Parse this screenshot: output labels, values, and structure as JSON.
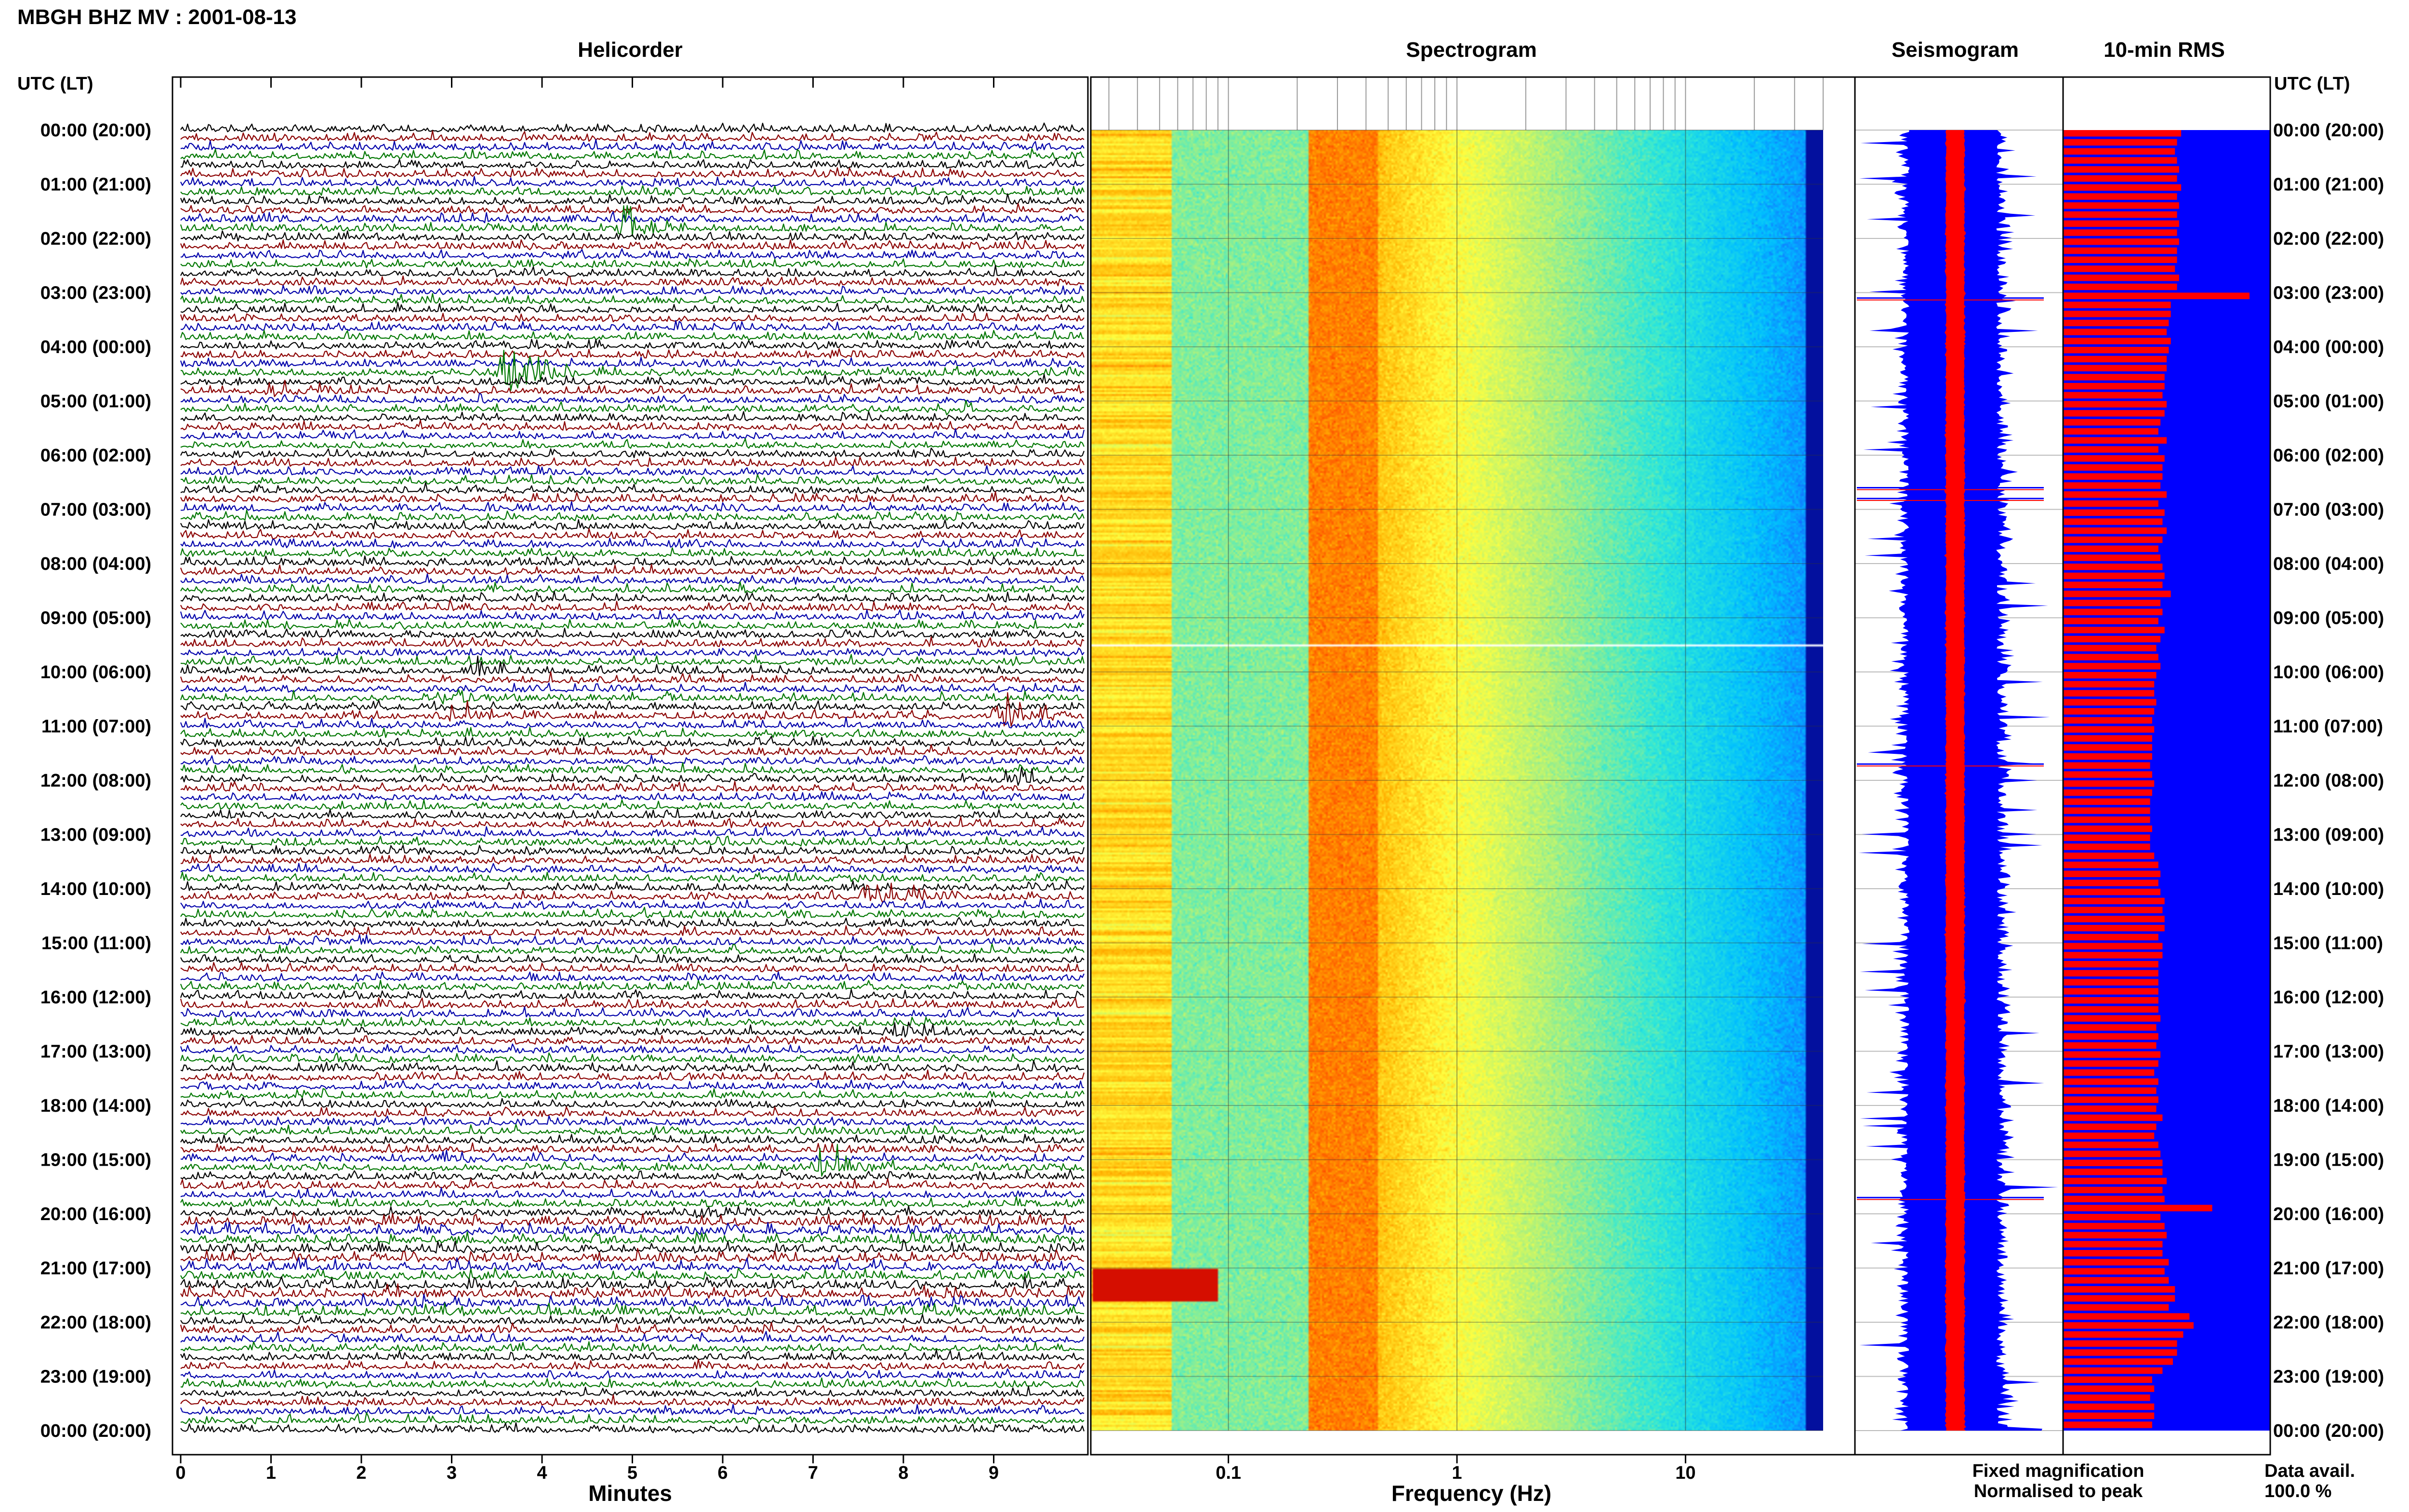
{
  "page": {
    "title": "MBGH BHZ MV : 2001-08-13",
    "axis_label_left": "UTC (LT)",
    "axis_label_right": "UTC (LT)"
  },
  "legend": {
    "fixed": "Fixed magnification",
    "normalised": "Normalised to peak",
    "fixed_color": "#0000ff",
    "normalised_color": "#ff0000",
    "availability_label": "Data avail.",
    "availability_value": "100.0 %"
  },
  "colors": {
    "trace_cycle": [
      "#000000",
      "#8b0000",
      "#0000aa",
      "#007700"
    ],
    "fixed": "#0000ff",
    "normalised": "#ff0000"
  },
  "time_labels": [
    "00:00 (20:00)",
    "01:00 (21:00)",
    "02:00 (22:00)",
    "03:00 (23:00)",
    "04:00 (00:00)",
    "05:00 (01:00)",
    "06:00 (02:00)",
    "07:00 (03:00)",
    "08:00 (04:00)",
    "09:00 (05:00)",
    "10:00 (06:00)",
    "11:00 (07:00)",
    "12:00 (08:00)",
    "13:00 (09:00)",
    "14:00 (10:00)",
    "15:00 (11:00)",
    "16:00 (12:00)",
    "17:00 (13:00)",
    "18:00 (14:00)",
    "19:00 (15:00)",
    "20:00 (16:00)",
    "21:00 (17:00)",
    "22:00 (18:00)",
    "23:00 (19:00)",
    "00:00 (20:00)"
  ],
  "chart_data": [
    {
      "type": "helicorder",
      "title": "Helicorder",
      "xlabel": "Minutes",
      "xlim": [
        0,
        10
      ],
      "xticks": [
        "0",
        "1",
        "2",
        "3",
        "4",
        "5",
        "6",
        "7",
        "8",
        "9"
      ],
      "rows_per_hour": 6,
      "hours": 24,
      "events": [
        {
          "row": 11,
          "minute": 4.9,
          "amp": 2.6,
          "color": "#0000aa"
        },
        {
          "row": 27,
          "minute": 3.6,
          "amp": 5.5,
          "color": "#007700"
        },
        {
          "row": 29,
          "minute": 1.0,
          "amp": 1.5,
          "color": "#000000"
        },
        {
          "row": 31,
          "minute": 8.5,
          "amp": 1.2,
          "color": "#000000"
        },
        {
          "row": 60,
          "minute": 3.3,
          "amp": 1.2,
          "color": "#000000"
        },
        {
          "row": 63,
          "minute": 2.8,
          "amp": 1.5,
          "color": "#007700"
        },
        {
          "row": 65,
          "minute": 9.1,
          "amp": 3.0,
          "color": "#8b0000"
        },
        {
          "row": 65,
          "minute": 3.0,
          "amp": 1.4,
          "color": "#007700"
        },
        {
          "row": 72,
          "minute": 9.2,
          "amp": 1.3,
          "color": "#8b0000"
        },
        {
          "row": 85,
          "minute": 7.8,
          "amp": 1.6,
          "color": "#000000"
        },
        {
          "row": 85,
          "minute": 7.6,
          "amp": 1.2,
          "color": "#007700"
        },
        {
          "row": 100,
          "minute": 7.9,
          "amp": 1.5,
          "color": "#000000"
        },
        {
          "row": 115,
          "minute": 7.1,
          "amp": 2.3,
          "color": "#8b0000"
        },
        {
          "row": 114,
          "minute": 2.9,
          "amp": 1.2,
          "color": "#8b0000"
        },
        {
          "row": 120,
          "minute": 5.7,
          "amp": 1.5,
          "color": "#8b0000"
        }
      ]
    },
    {
      "type": "heatmap",
      "title": "Spectrogram",
      "xlabel": "Frequency (Hz)",
      "x_scale": "log",
      "xlim": [
        0.025,
        40
      ],
      "xticks": [
        "0.1",
        "1",
        "10"
      ],
      "peak_band_hz": [
        0.22,
        0.45
      ],
      "gap_hour": 9.5,
      "colormap": [
        "#00008b",
        "#1565ff",
        "#00bfff",
        "#2fe8d8",
        "#a8f080",
        "#ffff40",
        "#ffb000",
        "#ff3a00",
        "#c80000"
      ]
    },
    {
      "type": "line",
      "title": "Seismogram",
      "series": [
        {
          "name": "Fixed magnification",
          "color": "#0000ff"
        },
        {
          "name": "Normalised to peak",
          "color": "#ff0000"
        }
      ],
      "spike_hours": [
        3.1,
        6.6,
        6.8,
        11.7,
        19.7
      ]
    },
    {
      "type": "bar",
      "title": "10-min RMS",
      "orientation": "horizontal",
      "values": [
        0.57,
        0.55,
        0.54,
        0.55,
        0.56,
        0.55,
        0.57,
        0.55,
        0.56,
        0.55,
        0.56,
        0.55,
        0.56,
        0.55,
        0.55,
        0.54,
        0.56,
        0.55,
        0.9,
        0.52,
        0.52,
        0.51,
        0.5,
        0.52,
        0.51,
        0.5,
        0.5,
        0.49,
        0.49,
        0.48,
        0.5,
        0.49,
        0.47,
        0.46,
        0.5,
        0.46,
        0.49,
        0.48,
        0.48,
        0.47,
        0.5,
        0.46,
        0.49,
        0.48,
        0.5,
        0.48,
        0.46,
        0.47,
        0.48,
        0.49,
        0.48,
        0.52,
        0.47,
        0.48,
        0.46,
        0.49,
        0.47,
        0.45,
        0.46,
        0.47,
        0.45,
        0.44,
        0.44,
        0.45,
        0.44,
        0.43,
        0.44,
        0.43,
        0.43,
        0.43,
        0.42,
        0.43,
        0.44,
        0.43,
        0.42,
        0.42,
        0.42,
        0.43,
        0.42,
        0.42,
        0.44,
        0.46,
        0.47,
        0.46,
        0.47,
        0.49,
        0.48,
        0.49,
        0.49,
        0.46,
        0.48,
        0.48,
        0.46,
        0.46,
        0.46,
        0.46,
        0.46,
        0.46,
        0.47,
        0.45,
        0.46,
        0.45,
        0.47,
        0.46,
        0.44,
        0.46,
        0.45,
        0.46,
        0.45,
        0.48,
        0.45,
        0.44,
        0.46,
        0.47,
        0.48,
        0.48,
        0.5,
        0.48,
        0.49,
        0.72,
        0.47,
        0.49,
        0.5,
        0.48,
        0.48,
        0.51,
        0.49,
        0.51,
        0.54,
        0.54,
        0.51,
        0.61,
        0.63,
        0.58,
        0.55,
        0.55,
        0.53,
        0.48,
        0.43,
        0.44,
        0.42,
        0.44,
        0.44,
        0.43
      ]
    }
  ]
}
